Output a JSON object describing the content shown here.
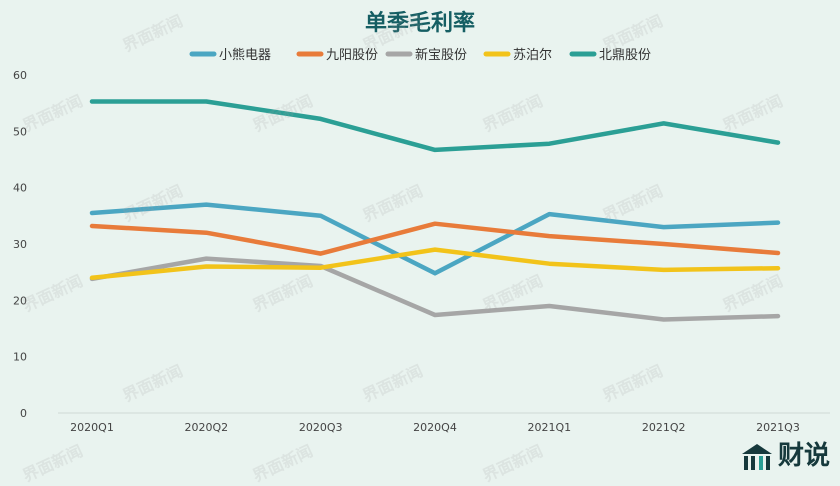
{
  "colors": {
    "background": "#e9f3ef",
    "title": "#155e63"
  },
  "brand": {
    "text": "财说",
    "icon": "building-logo-icon"
  },
  "watermark": {
    "text": "界面新闻"
  },
  "chart_data": {
    "type": "line",
    "title": "单季毛利率",
    "xlabel": "",
    "ylabel": "",
    "categories": [
      "2020Q1",
      "2020Q2",
      "2020Q3",
      "2020Q4",
      "2021Q1",
      "2021Q2",
      "2021Q3"
    ],
    "ylim": [
      0,
      60
    ],
    "yticks": [
      0,
      10,
      20,
      30,
      40,
      50,
      60
    ],
    "grid": false,
    "legend_position": "top",
    "series": [
      {
        "name": "小熊电器",
        "color": "#4ba6c2",
        "values": [
          35.5,
          37.0,
          35.0,
          24.8,
          35.3,
          33.0,
          33.8
        ]
      },
      {
        "name": "九阳股份",
        "color": "#e87b3a",
        "values": [
          33.2,
          32.0,
          28.3,
          33.6,
          31.4,
          30.0,
          28.4
        ]
      },
      {
        "name": "新宝股份",
        "color": "#a6a6a6",
        "values": [
          23.8,
          27.4,
          26.1,
          17.4,
          19.0,
          16.6,
          17.2
        ]
      },
      {
        "name": "苏泊尔",
        "color": "#f2c31a",
        "values": [
          24.0,
          26.0,
          25.8,
          29.0,
          26.5,
          25.4,
          25.7
        ]
      },
      {
        "name": "北鼎股份",
        "color": "#2b9f95",
        "values": [
          55.3,
          55.3,
          52.2,
          46.7,
          47.8,
          51.4,
          48.0
        ]
      }
    ]
  }
}
